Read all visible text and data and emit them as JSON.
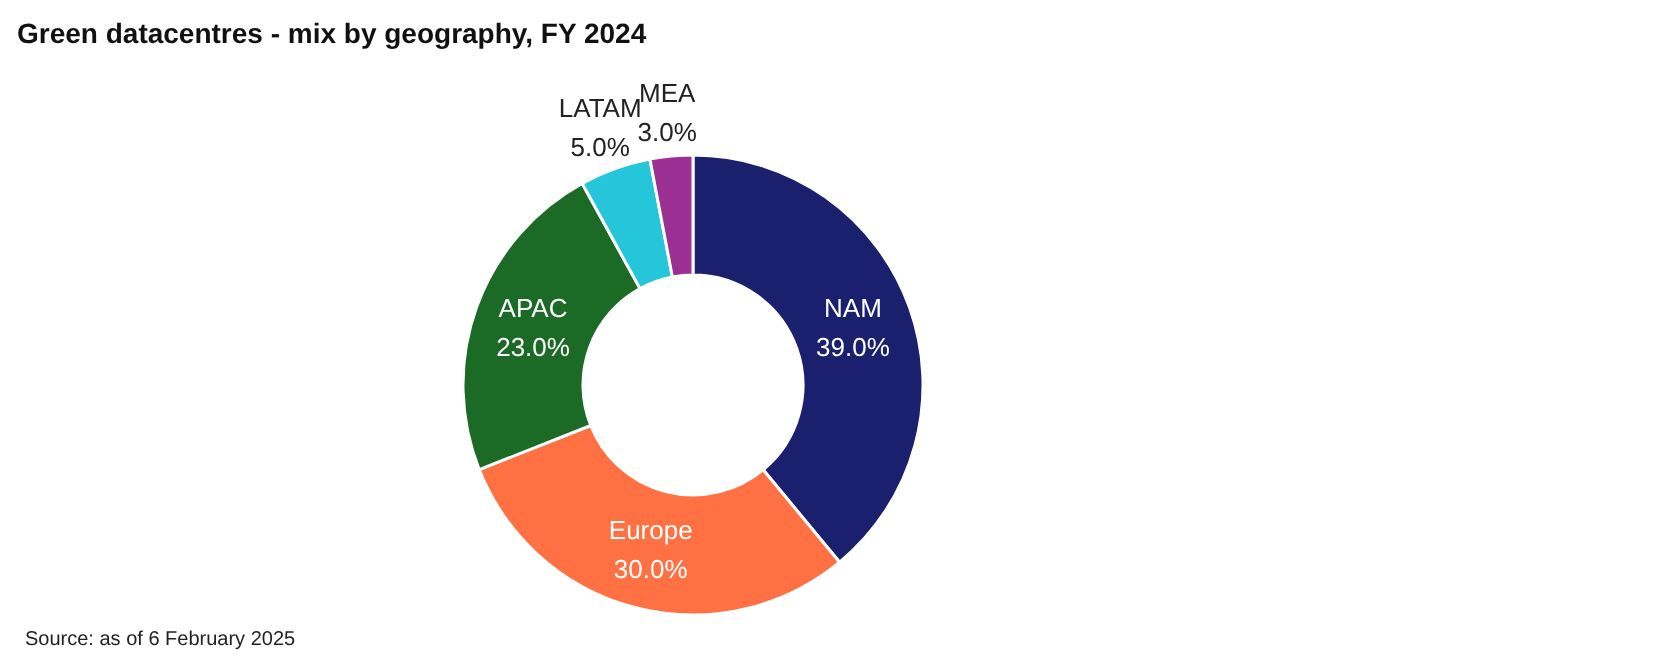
{
  "chart_data": {
    "type": "donut",
    "title": "Green datacentres - mix by geography, FY 2024",
    "categories": [
      "NAM",
      "Europe",
      "APAC",
      "LATAM",
      "MEA"
    ],
    "values": [
      39,
      30,
      23,
      5,
      3
    ],
    "value_labels": [
      "39.0%",
      "30.0%",
      "23.0%",
      "5.0%",
      "3.0%"
    ],
    "colors": [
      "#1a1f6e",
      "#ff7043",
      "#1b6b27",
      "#26c6da",
      "#9c2f94"
    ],
    "annotations": [
      "Source: as of 6 February 2025"
    ],
    "legend": false
  }
}
